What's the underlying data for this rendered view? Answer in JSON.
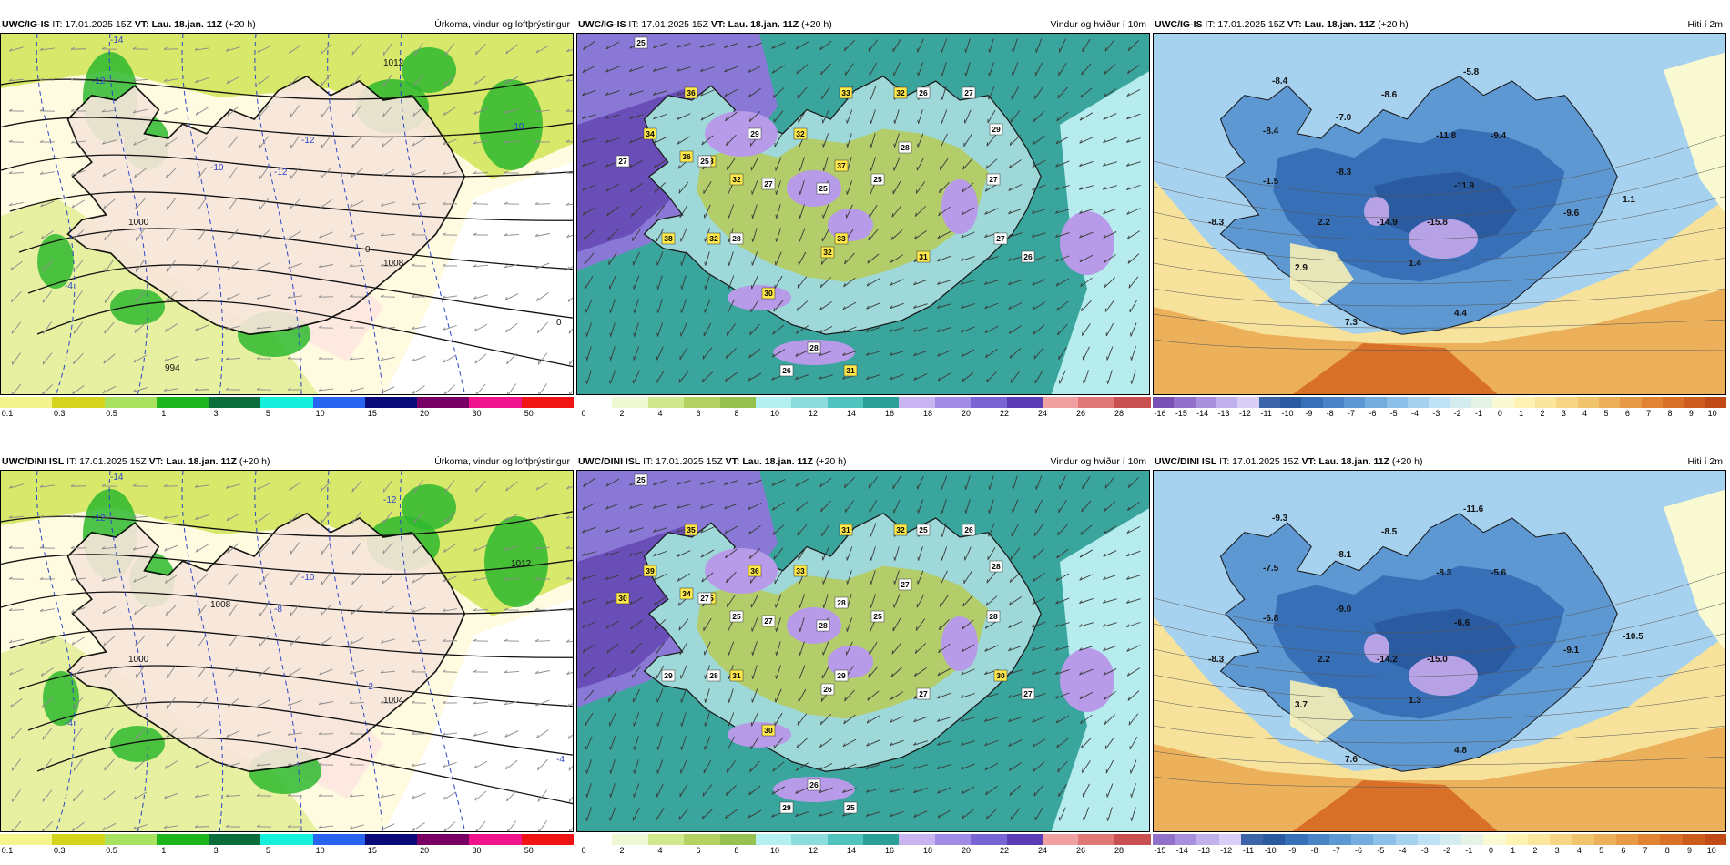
{
  "panels": [
    {
      "model": "UWC/IG-IS",
      "it": "IT: 17.01.2025 15Z",
      "vt_label": "VT:",
      "vt": "Lau. 18.jan. 11Z",
      "lead": "(+20 h)",
      "field": "Úrkoma, vindur og loftþrýstingur",
      "kind": "precip"
    },
    {
      "model": "UWC/IG-IS",
      "it": "IT: 17.01.2025 15Z",
      "vt_label": "VT:",
      "vt": "Lau. 18.jan. 11Z",
      "lead": "(+20 h)",
      "field": "Vindur og hviður í 10m",
      "kind": "wind"
    },
    {
      "model": "UWC/IG-IS",
      "it": "IT: 17.01.2025 15Z",
      "vt_label": "VT:",
      "vt": "Lau. 18.jan. 11Z",
      "lead": "(+20 h)",
      "field": "Hiti í 2m",
      "kind": "temp"
    },
    {
      "model": "UWC/DINI ISL",
      "it": "IT: 17.01.2025 15Z",
      "vt_label": "VT:",
      "vt": "Lau. 18.jan. 11Z",
      "lead": "(+20 h)",
      "field": "Úrkoma, vindur og loftþrýstingur",
      "kind": "precip"
    },
    {
      "model": "UWC/DINI ISL",
      "it": "IT: 17.01.2025 15Z",
      "vt_label": "VT:",
      "vt": "Lau. 18.jan. 11Z",
      "lead": "(+20 h)",
      "field": "Vindur og hviður í 10m",
      "kind": "wind"
    },
    {
      "model": "UWC/DINI ISL",
      "it": "IT: 17.01.2025 15Z",
      "vt_label": "VT:",
      "vt": "Lau. 18.jan. 11Z",
      "lead": "(+20 h)",
      "field": "Hiti í 2m",
      "kind": "temp"
    }
  ],
  "scales": {
    "precip": {
      "ticks": [
        "0.1",
        "0.3",
        "0.5",
        "1",
        "3",
        "5",
        "10",
        "15",
        "20",
        "30",
        "50"
      ],
      "colors": [
        "#f4f48c",
        "#d4d41c",
        "#a8e060",
        "#1eb41e",
        "#0a6e3c",
        "#14f0dc",
        "#2864f0",
        "#0a0a78",
        "#780064",
        "#f0148c",
        "#f01414"
      ]
    },
    "wind": {
      "ticks": [
        "0",
        "2",
        "4",
        "6",
        "8",
        "10",
        "12",
        "14",
        "16",
        "18",
        "20",
        "22",
        "24",
        "26",
        "28"
      ],
      "colors": [
        "#ffffff",
        "#eef8d2",
        "#d2e88c",
        "#b4d264",
        "#96c050",
        "#b4f0f0",
        "#8cdcdc",
        "#50c3be",
        "#2aa096",
        "#c8b4f0",
        "#a08ce6",
        "#7864d2",
        "#5a3cb4",
        "#f0a0a0",
        "#e07878",
        "#c85050"
      ]
    },
    "temp_a": {
      "ticks": [
        "-16",
        "-15",
        "-14",
        "-13",
        "-12",
        "-11",
        "-10",
        "-9",
        "-8",
        "-7",
        "-6",
        "-5",
        "-4",
        "-3",
        "-2",
        "-1",
        "0",
        "1",
        "2",
        "3",
        "4",
        "5",
        "6",
        "7",
        "8",
        "9",
        "10"
      ],
      "colors": [
        "#7850b4",
        "#9070c8",
        "#a890dc",
        "#c0b0ec",
        "#d8cef6",
        "#3c64a8",
        "#2a5aa0",
        "#3870b8",
        "#4a84c6",
        "#5e98d2",
        "#74acde",
        "#8cc0e8",
        "#a6d2f0",
        "#c0e2f6",
        "#d4ecf0",
        "#e6f2e6",
        "#fafad2",
        "#fff3b4",
        "#fae69c",
        "#f6d684",
        "#f0c46c",
        "#ecb05a",
        "#e69a46",
        "#e08434",
        "#d87028",
        "#cc5c1e",
        "#c04a16"
      ]
    },
    "temp_b": {
      "ticks": [
        "-15",
        "-14",
        "-13",
        "-12",
        "-11",
        "-10",
        "-9",
        "-8",
        "-7",
        "-6",
        "-5",
        "-4",
        "-3",
        "-2",
        "-1",
        "0",
        "1",
        "2",
        "3",
        "4",
        "5",
        "6",
        "7",
        "8",
        "9",
        "10"
      ],
      "colors": [
        "#9070c8",
        "#a890dc",
        "#c0b0ec",
        "#d8cef6",
        "#3c64a8",
        "#2a5aa0",
        "#3870b8",
        "#4a84c6",
        "#5e98d2",
        "#74acde",
        "#8cc0e8",
        "#a6d2f0",
        "#c0e2f6",
        "#d4ecf0",
        "#e6f2e6",
        "#fafad2",
        "#fff3b4",
        "#fae69c",
        "#f6d684",
        "#f0c46c",
        "#ecb05a",
        "#e69a46",
        "#e08434",
        "#d87028",
        "#cc5c1e",
        "#c04a16"
      ]
    }
  },
  "wind_labels": {
    "top": [
      "25",
      "36",
      "34",
      "27",
      "36",
      "38",
      "29",
      "32",
      "33",
      "32",
      "26",
      "27",
      "29",
      "27",
      "25",
      "37",
      "28",
      "32",
      "27",
      "25",
      "38",
      "32",
      "28",
      "33",
      "31",
      "26",
      "27",
      "32",
      "30",
      "28",
      "26",
      "31",
      "25"
    ],
    "bottom": [
      "25",
      "35",
      "39",
      "30",
      "34",
      "35",
      "36",
      "33",
      "31",
      "32",
      "25",
      "26",
      "28",
      "28",
      "25",
      "28",
      "27",
      "25",
      "27",
      "28",
      "29",
      "28",
      "31",
      "29",
      "27",
      "27",
      "30",
      "26",
      "30",
      "26",
      "29",
      "25",
      "27"
    ]
  },
  "temp_labels": {
    "top": [
      "-8.4",
      "-8.4",
      "-7.0",
      "-8.6",
      "-5.8",
      "-11.8",
      "-9.4",
      "-8.3",
      "-1.5",
      "-11.9",
      "1.1",
      "-8.3",
      "2.2",
      "-14.9",
      "-15.8",
      "-9.6",
      "2.9",
      "1.4",
      "4.4",
      "7.3"
    ],
    "bottom": [
      "-9.3",
      "-7.5",
      "-8.1",
      "-8.5",
      "-11.6",
      "-8.3",
      "-5.6",
      "-9.0",
      "-6.8",
      "-6.6",
      "-10.5",
      "-8.3",
      "2.2",
      "-14.2",
      "-15.0",
      "-9.1",
      "3.7",
      "1.3",
      "4.8",
      "7.6"
    ]
  },
  "precip_labels": {
    "top": [
      "-14",
      "-12",
      "1012",
      "-10",
      "-12",
      "-12",
      "-10",
      "1000",
      "1008",
      "-4",
      "0",
      "0",
      "994"
    ],
    "bottom": [
      "-14",
      "-12",
      "-12",
      "1012",
      "-10",
      "-8",
      "1008",
      "1000",
      "1004",
      "-4",
      "-2",
      "-4"
    ]
  }
}
